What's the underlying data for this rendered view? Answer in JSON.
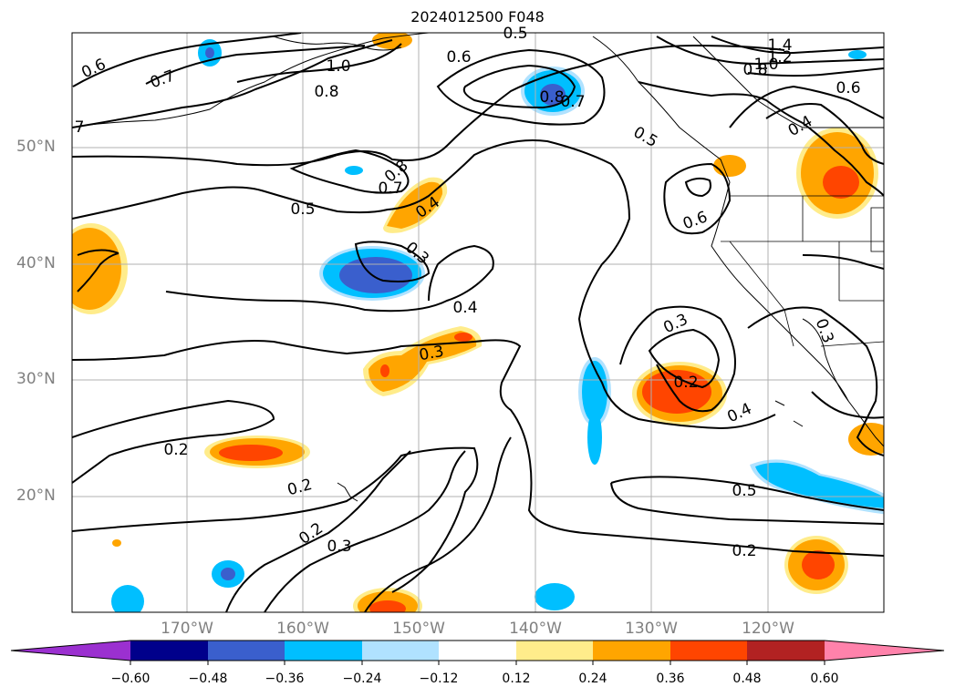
{
  "title": "2024012500 F048",
  "lat_labels": [
    "50°N",
    "40°N",
    "30°N",
    "20°N"
  ],
  "lon_labels": [
    "170°W",
    "160°W",
    "150°W",
    "140°W",
    "130°W",
    "120°W"
  ],
  "colorbar": {
    "ticks": [
      "−0.60",
      "−0.48",
      "−0.36",
      "−0.24",
      "−0.12",
      "0.12",
      "0.24",
      "0.36",
      "0.48",
      "0.60"
    ],
    "colors": [
      "#9b30d0",
      "#00008b",
      "#3a5fcd",
      "#00bfff",
      "#b0e2ff",
      "#ffffff",
      "#ffec8b",
      "#ffa500",
      "#ff4500",
      "#b22222",
      "#ff82ab"
    ]
  },
  "contour_labels": [
    "0.6",
    "0.7",
    "1.0",
    "0.8",
    "7",
    "0.5",
    "0.6",
    "0.8",
    "0.7",
    "0.5",
    "1.4",
    "1.2",
    "1.0",
    "0.8",
    "0.6",
    "0.4",
    "0.8",
    "0.7",
    "0.4",
    "0.5",
    "0.6",
    "0.3",
    "0.4",
    "0.3",
    "0.3",
    "0.2",
    "0.4",
    "0.3",
    "0.2",
    "0.2",
    "0.2",
    "0.3",
    "0.5",
    "0.2"
  ]
}
